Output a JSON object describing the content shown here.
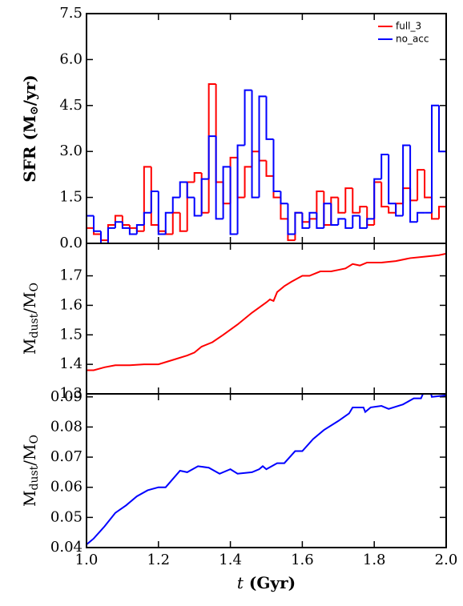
{
  "chart_data": [
    {
      "type": "step",
      "ylabel": [
        "SFR (M",
        "⊙",
        "/yr)"
      ],
      "x": [
        1.0,
        1.02,
        1.04,
        1.06,
        1.08,
        1.1,
        1.12,
        1.14,
        1.16,
        1.18,
        1.2,
        1.22,
        1.24,
        1.26,
        1.28,
        1.3,
        1.32,
        1.34,
        1.36,
        1.38,
        1.4,
        1.42,
        1.44,
        1.46,
        1.48,
        1.5,
        1.52,
        1.54,
        1.56,
        1.58,
        1.6,
        1.62,
        1.64,
        1.66,
        1.68,
        1.7,
        1.72,
        1.74,
        1.76,
        1.78,
        1.8,
        1.82,
        1.84,
        1.86,
        1.88,
        1.9,
        1.92,
        1.94,
        1.96,
        1.98
      ],
      "series": [
        {
          "name": "full_3",
          "color": "#ff0000",
          "values": [
            0.5,
            0.3,
            0.1,
            0.6,
            0.9,
            0.6,
            0.5,
            0.4,
            2.5,
            0.6,
            0.4,
            0.3,
            1.0,
            0.4,
            2.0,
            2.3,
            1.0,
            5.2,
            2.0,
            1.3,
            2.8,
            1.5,
            2.5,
            3.0,
            2.7,
            2.2,
            1.5,
            0.8,
            0.1,
            1.0,
            0.7,
            0.8,
            1.7,
            0.6,
            1.5,
            1.0,
            1.8,
            1.0,
            1.2,
            0.6,
            2.0,
            1.2,
            1.0,
            1.3,
            1.8,
            1.4,
            2.4,
            1.5,
            0.8,
            1.2
          ]
        },
        {
          "name": "no_acc",
          "color": "#0000ff",
          "values": [
            0.9,
            0.4,
            0.0,
            0.5,
            0.7,
            0.5,
            0.3,
            0.6,
            1.0,
            1.7,
            0.3,
            1.0,
            1.5,
            2.0,
            1.5,
            0.9,
            2.1,
            3.5,
            0.8,
            2.5,
            0.3,
            3.2,
            5.0,
            1.5,
            4.8,
            3.4,
            1.7,
            1.3,
            0.3,
            1.0,
            0.5,
            1.0,
            0.5,
            1.3,
            0.6,
            0.8,
            0.5,
            0.9,
            0.5,
            0.8,
            2.1,
            2.9,
            1.3,
            0.9,
            3.2,
            0.7,
            1.0,
            1.0,
            4.5,
            3.0
          ]
        }
      ],
      "ylim": [
        0,
        7.5
      ],
      "yticks": [
        {
          "value": 0,
          "label": "0.0"
        },
        1.5,
        {
          "value": 3,
          "label": "3.0"
        },
        4.5,
        {
          "value": 6,
          "label": "6.0"
        },
        7.5
      ],
      "legend": "upper right"
    },
    {
      "type": "line",
      "ylabel": [
        "M",
        "dust",
        "/M",
        "O"
      ],
      "x": [
        1.0,
        1.02,
        1.05,
        1.08,
        1.12,
        1.16,
        1.2,
        1.24,
        1.28,
        1.3,
        1.32,
        1.35,
        1.38,
        1.42,
        1.46,
        1.5,
        1.51,
        1.52,
        1.53,
        1.55,
        1.57,
        1.6,
        1.62,
        1.65,
        1.68,
        1.7,
        1.72,
        1.74,
        1.76,
        1.78,
        1.82,
        1.86,
        1.9,
        1.94,
        1.98,
        2.0
      ],
      "series": [
        {
          "name": "full_3",
          "color": "#ff0000",
          "values": [
            1.38,
            1.38,
            1.39,
            1.397,
            1.397,
            1.4,
            1.4,
            1.415,
            1.43,
            1.44,
            1.46,
            1.475,
            1.5,
            1.535,
            1.575,
            1.61,
            1.62,
            1.615,
            1.645,
            1.665,
            1.68,
            1.7,
            1.7,
            1.715,
            1.715,
            1.72,
            1.725,
            1.74,
            1.735,
            1.745,
            1.745,
            1.75,
            1.76,
            1.765,
            1.77,
            1.775
          ]
        }
      ],
      "ylim": [
        1.3,
        1.81
      ],
      "yticks": [
        1.3,
        1.4,
        1.5,
        1.6,
        1.7
      ]
    },
    {
      "type": "line",
      "ylabel": [
        "M",
        "dust",
        "/M",
        "O"
      ],
      "xlabel": [
        "t",
        " (Gyr)"
      ],
      "x": [
        1.0,
        1.02,
        1.05,
        1.08,
        1.11,
        1.14,
        1.17,
        1.2,
        1.22,
        1.26,
        1.28,
        1.31,
        1.34,
        1.37,
        1.4,
        1.42,
        1.46,
        1.48,
        1.49,
        1.5,
        1.53,
        1.55,
        1.58,
        1.6,
        1.63,
        1.66,
        1.7,
        1.73,
        1.74,
        1.77,
        1.775,
        1.79,
        1.82,
        1.84,
        1.88,
        1.91,
        1.93,
        1.95,
        1.96,
        2.0
      ],
      "series": [
        {
          "name": "no_acc",
          "color": "#0000ff",
          "values": [
            0.041,
            0.043,
            0.047,
            0.0515,
            0.054,
            0.057,
            0.059,
            0.06,
            0.06,
            0.0655,
            0.065,
            0.067,
            0.0665,
            0.0645,
            0.066,
            0.0645,
            0.065,
            0.066,
            0.067,
            0.066,
            0.068,
            0.068,
            0.072,
            0.072,
            0.076,
            0.079,
            0.082,
            0.0845,
            0.0865,
            0.0865,
            0.085,
            0.0865,
            0.087,
            0.086,
            0.0875,
            0.0895,
            0.0895,
            0.095,
            0.09,
            0.0905
          ]
        }
      ],
      "ylim": [
        0.04,
        0.091
      ],
      "yticks": [
        0.04,
        0.05,
        0.06,
        0.07,
        0.08,
        0.09
      ],
      "xlim": [
        1.0,
        2.0
      ],
      "xticks": [
        {
          "value": 1,
          "label": "1.0"
        },
        1.2,
        1.4,
        1.6,
        1.8,
        {
          "value": 2,
          "label": "2.0"
        }
      ]
    }
  ]
}
